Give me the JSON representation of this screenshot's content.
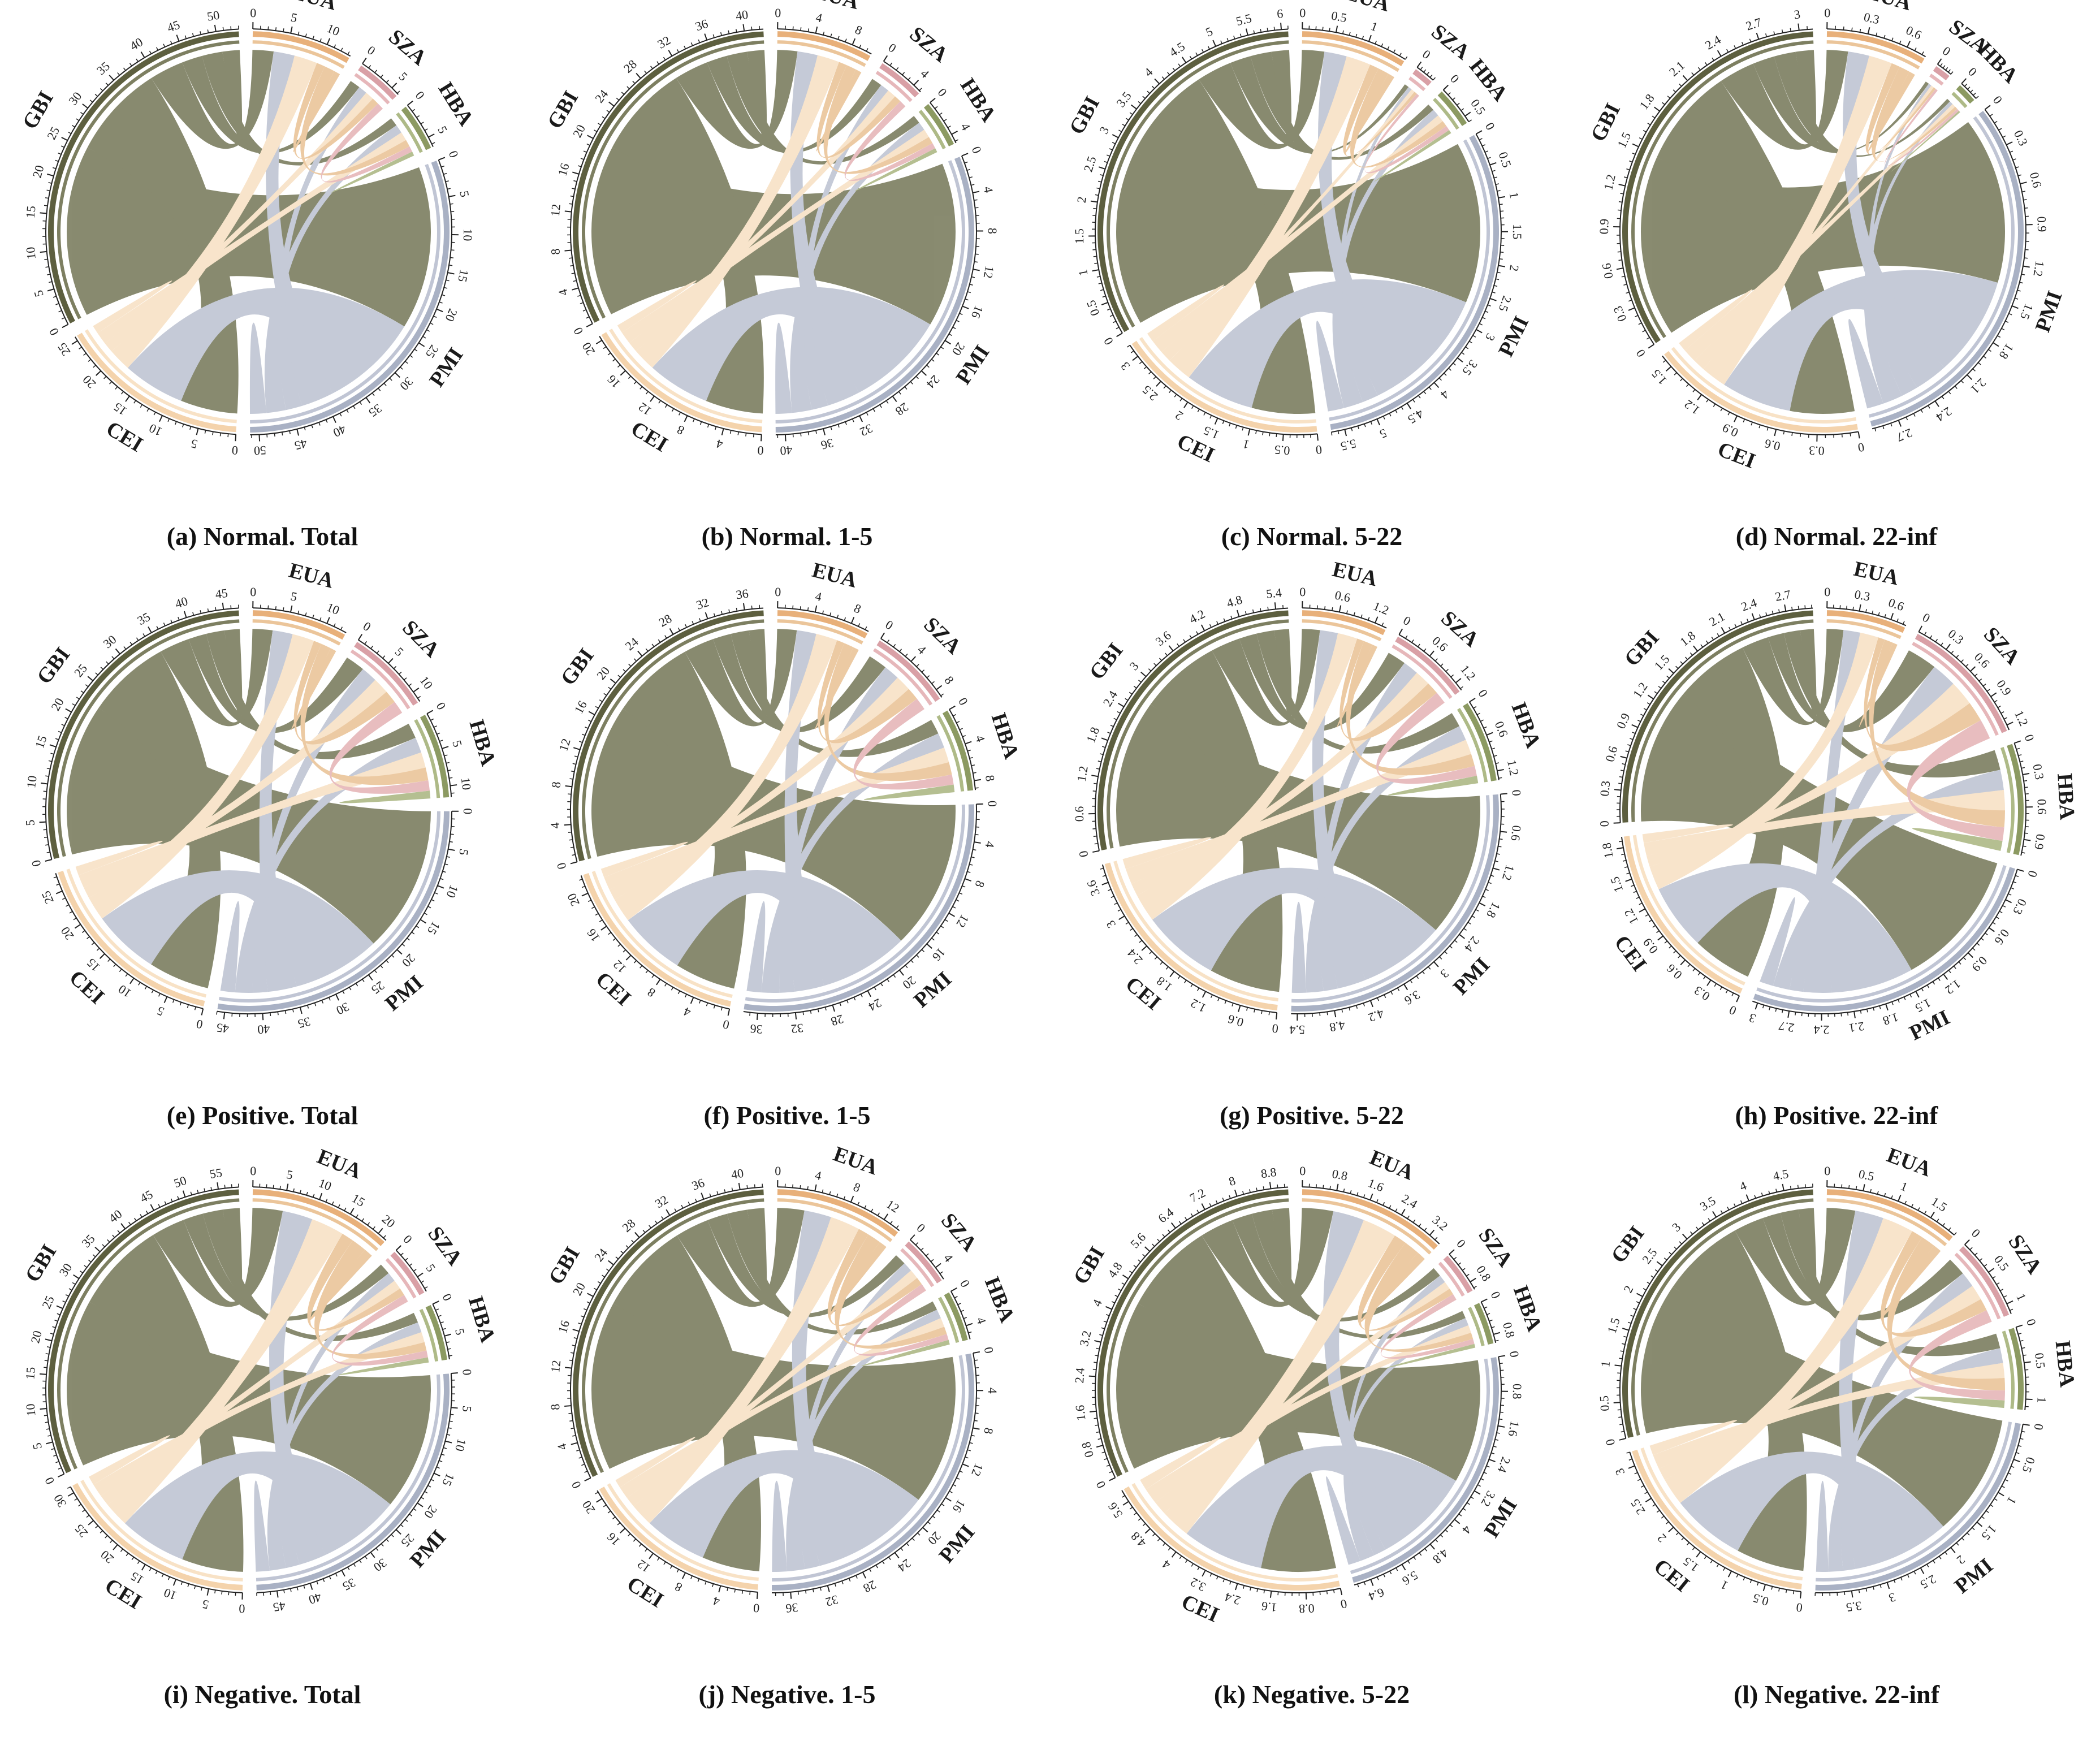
{
  "chart_data": [
    {
      "type": "chord",
      "caption": "(a) Normal. Total",
      "nodes": [
        {
          "name": "EUA",
          "total": 13.4,
          "ticks": [
            0,
            5,
            10
          ]
        },
        {
          "name": "SZA",
          "total": 6.2,
          "ticks": [
            0,
            5
          ]
        },
        {
          "name": "HBA",
          "total": 6.4,
          "ticks": [
            0,
            5
          ]
        },
        {
          "name": "PMI",
          "total": 51.2,
          "ticks": [
            0,
            5,
            10,
            15,
            20,
            25,
            30,
            35,
            40,
            45,
            50
          ]
        },
        {
          "name": "CEI",
          "total": 25.6,
          "ticks": [
            0,
            5,
            10,
            15,
            20,
            25
          ]
        },
        {
          "name": "GBI",
          "total": 53.0,
          "ticks": [
            0,
            5,
            10,
            15,
            20,
            25,
            30,
            35,
            40,
            45,
            50
          ]
        }
      ]
    },
    {
      "type": "chord",
      "caption": "(b) Normal. 1-5",
      "nodes": [
        {
          "name": "EUA",
          "total": 10.2,
          "ticks": [
            0,
            4,
            8
          ]
        },
        {
          "name": "SZA",
          "total": 5.0,
          "ticks": [
            0,
            4
          ]
        },
        {
          "name": "HBA",
          "total": 5.0,
          "ticks": [
            0,
            4
          ]
        },
        {
          "name": "PMI",
          "total": 41.0,
          "ticks": [
            0,
            4,
            8,
            12,
            16,
            20,
            24,
            28,
            32,
            36,
            40
          ]
        },
        {
          "name": "CEI",
          "total": 20.5,
          "ticks": [
            0,
            4,
            8,
            12,
            16,
            20
          ]
        },
        {
          "name": "GBI",
          "total": 42.0,
          "ticks": [
            0,
            4,
            8,
            12,
            16,
            20,
            24,
            28,
            32,
            36,
            40
          ]
        }
      ]
    },
    {
      "type": "chord",
      "caption": "(c) Normal. 5-22",
      "nodes": [
        {
          "name": "EUA",
          "total": 1.6,
          "ticks": [
            0,
            0.5,
            1
          ]
        },
        {
          "name": "SZA",
          "total": 0.3,
          "ticks": [
            0
          ]
        },
        {
          "name": "HBA",
          "total": 0.6,
          "ticks": [
            0,
            0.5
          ]
        },
        {
          "name": "PMI",
          "total": 5.7,
          "ticks": [
            0,
            0.5,
            1,
            1.5,
            2,
            2.5,
            3,
            3.5,
            4,
            4.5,
            5,
            5.5
          ]
        },
        {
          "name": "CEI",
          "total": 3.2,
          "ticks": [
            0,
            0.5,
            1,
            1.5,
            2,
            2.5,
            3
          ]
        },
        {
          "name": "GBI",
          "total": 6.1,
          "ticks": [
            0,
            0.5,
            1,
            1.5,
            2,
            2.5,
            3,
            3.5,
            4,
            4.5,
            5,
            5.5,
            6
          ]
        }
      ]
    },
    {
      "type": "chord",
      "caption": "(d) Normal. 22-inf",
      "nodes": [
        {
          "name": "EUA",
          "total": 0.75,
          "ticks": [
            0,
            0.3,
            0.6
          ]
        },
        {
          "name": "SZA",
          "total": 0.12,
          "ticks": [
            0
          ]
        },
        {
          "name": "HBA",
          "total": 0.15,
          "ticks": [
            0
          ]
        },
        {
          "name": "PMI",
          "total": 2.9,
          "ticks": [
            0,
            0.3,
            0.6,
            0.9,
            1.2,
            1.5,
            1.8,
            2.1,
            2.4,
            2.7
          ]
        },
        {
          "name": "CEI",
          "total": 1.6,
          "ticks": [
            0,
            0.3,
            0.6,
            0.9,
            1.2,
            1.5
          ]
        },
        {
          "name": "GBI",
          "total": 3.1,
          "ticks": [
            0,
            0.3,
            0.6,
            0.9,
            1.2,
            1.5,
            1.8,
            2.1,
            2.4,
            2.7,
            3
          ]
        }
      ]
    },
    {
      "type": "chord",
      "caption": "(e) Positive. Total",
      "nodes": [
        {
          "name": "EUA",
          "total": 12.8,
          "ticks": [
            0,
            5,
            10
          ]
        },
        {
          "name": "SZA",
          "total": 11.5,
          "ticks": [
            0,
            5,
            10
          ]
        },
        {
          "name": "HBA",
          "total": 11.5,
          "ticks": [
            0,
            5,
            10
          ]
        },
        {
          "name": "PMI",
          "total": 46.0,
          "ticks": [
            0,
            5,
            10,
            15,
            20,
            25,
            30,
            35,
            40,
            45
          ]
        },
        {
          "name": "CEI",
          "total": 27.5,
          "ticks": [
            0,
            5,
            10,
            15,
            20,
            25
          ]
        },
        {
          "name": "GBI",
          "total": 47.0,
          "ticks": [
            0,
            5,
            10,
            15,
            20,
            25,
            30,
            35,
            40,
            45
          ]
        }
      ]
    },
    {
      "type": "chord",
      "caption": "(f) Positive. 1-5",
      "nodes": [
        {
          "name": "EUA",
          "total": 10.0,
          "ticks": [
            0,
            4,
            8
          ]
        },
        {
          "name": "SZA",
          "total": 9.0,
          "ticks": [
            0,
            4,
            8
          ]
        },
        {
          "name": "HBA",
          "total": 9.0,
          "ticks": [
            0,
            4,
            8
          ]
        },
        {
          "name": "PMI",
          "total": 37.5,
          "ticks": [
            0,
            4,
            8,
            12,
            16,
            20,
            24,
            28,
            32,
            36
          ]
        },
        {
          "name": "CEI",
          "total": 22.0,
          "ticks": [
            0,
            4,
            8,
            12,
            16,
            20
          ]
        },
        {
          "name": "GBI",
          "total": 38.0,
          "ticks": [
            0,
            4,
            8,
            12,
            16,
            20,
            24,
            28,
            32,
            36
          ]
        }
      ]
    },
    {
      "type": "chord",
      "caption": "(g) Positive. 5-22",
      "nodes": [
        {
          "name": "EUA",
          "total": 1.4,
          "ticks": [
            0,
            0.6,
            1.2
          ]
        },
        {
          "name": "SZA",
          "total": 1.35,
          "ticks": [
            0,
            0.6,
            1.2
          ]
        },
        {
          "name": "HBA",
          "total": 1.35,
          "ticks": [
            0,
            0.6,
            1.2
          ]
        },
        {
          "name": "PMI",
          "total": 5.5,
          "ticks": [
            0,
            0.6,
            1.2,
            1.8,
            2.4,
            3,
            3.6,
            4.2,
            4.8,
            5.4
          ]
        },
        {
          "name": "CEI",
          "total": 3.9,
          "ticks": [
            0,
            0.6,
            1.2,
            1.8,
            2.4,
            3,
            3.6
          ]
        },
        {
          "name": "GBI",
          "total": 5.6,
          "ticks": [
            0,
            0.6,
            1.2,
            1.8,
            2.4,
            3,
            3.6,
            4.2,
            4.8,
            5.4
          ]
        }
      ]
    },
    {
      "type": "chord",
      "caption": "(h) Positive. 22-inf",
      "nodes": [
        {
          "name": "EUA",
          "total": 0.75,
          "ticks": [
            0,
            0.3,
            0.6
          ]
        },
        {
          "name": "SZA",
          "total": 1.25,
          "ticks": [
            0,
            0.3,
            0.6,
            0.9,
            1.2
          ]
        },
        {
          "name": "HBA",
          "total": 1.05,
          "ticks": [
            0,
            0.3,
            0.6,
            0.9
          ]
        },
        {
          "name": "PMI",
          "total": 3.05,
          "ticks": [
            0,
            0.3,
            0.6,
            0.9,
            1.2,
            1.5,
            1.8,
            2.1,
            2.4,
            2.7,
            3
          ]
        },
        {
          "name": "CEI",
          "total": 1.9,
          "ticks": [
            0,
            0.3,
            0.6,
            0.9,
            1.2,
            1.5,
            1.8
          ]
        },
        {
          "name": "GBI",
          "total": 2.95,
          "ticks": [
            0,
            0.3,
            0.6,
            0.9,
            1.2,
            1.5,
            1.8,
            2.1,
            2.4,
            2.7
          ]
        }
      ]
    },
    {
      "type": "chord",
      "caption": "(i) Negative. Total",
      "nodes": [
        {
          "name": "EUA",
          "total": 21.5,
          "ticks": [
            0,
            5,
            10,
            15,
            20
          ]
        },
        {
          "name": "SZA",
          "total": 7.5,
          "ticks": [
            0,
            5
          ]
        },
        {
          "name": "HBA",
          "total": 8.5,
          "ticks": [
            0,
            5
          ]
        },
        {
          "name": "PMI",
          "total": 48.0,
          "ticks": [
            0,
            5,
            10,
            15,
            20,
            25,
            30,
            35,
            40,
            45
          ]
        },
        {
          "name": "CEI",
          "total": 31.0,
          "ticks": [
            0,
            5,
            10,
            15,
            20,
            25,
            30
          ]
        },
        {
          "name": "GBI",
          "total": 58.0,
          "ticks": [
            0,
            5,
            10,
            15,
            20,
            25,
            30,
            35,
            40,
            45,
            50,
            55
          ]
        }
      ]
    },
    {
      "type": "chord",
      "caption": "(j) Negative. 1-5",
      "nodes": [
        {
          "name": "EUA",
          "total": 14.0,
          "ticks": [
            0,
            4,
            8,
            12
          ]
        },
        {
          "name": "SZA",
          "total": 5.5,
          "ticks": [
            0,
            4
          ]
        },
        {
          "name": "HBA",
          "total": 5.5,
          "ticks": [
            0,
            4
          ]
        },
        {
          "name": "PMI",
          "total": 38.0,
          "ticks": [
            0,
            4,
            8,
            12,
            16,
            20,
            24,
            28,
            32,
            36
          ]
        },
        {
          "name": "CEI",
          "total": 21.0,
          "ticks": [
            0,
            4,
            8,
            12,
            16,
            20
          ]
        },
        {
          "name": "GBI",
          "total": 42.5,
          "ticks": [
            0,
            4,
            8,
            12,
            16,
            20,
            24,
            28,
            32,
            36,
            40
          ]
        }
      ]
    },
    {
      "type": "chord",
      "caption": "(k) Negative. 5-22",
      "nodes": [
        {
          "name": "EUA",
          "total": 3.5,
          "ticks": [
            0,
            0.8,
            1.6,
            2.4,
            3.2
          ]
        },
        {
          "name": "SZA",
          "total": 1.0,
          "ticks": [
            0,
            0.8
          ]
        },
        {
          "name": "HBA",
          "total": 1.0,
          "ticks": [
            0,
            0.8
          ]
        },
        {
          "name": "PMI",
          "total": 6.8,
          "ticks": [
            0,
            0.8,
            1.6,
            2.4,
            3.2,
            4,
            4.8,
            5.6,
            6.4
          ]
        },
        {
          "name": "CEI",
          "total": 5.9,
          "ticks": [
            0,
            0.8,
            1.6,
            2.4,
            3.2,
            4,
            4.8,
            5.6
          ]
        },
        {
          "name": "GBI",
          "total": 9.2,
          "ticks": [
            0,
            0.8,
            1.6,
            2.4,
            3.2,
            4,
            4.8,
            5.6,
            6.4,
            7.2,
            8,
            8.8
          ]
        }
      ]
    },
    {
      "type": "chord",
      "caption": "(l) Negative. 22-inf",
      "nodes": [
        {
          "name": "EUA",
          "total": 1.9,
          "ticks": [
            0,
            0.5,
            1,
            1.5
          ]
        },
        {
          "name": "SZA",
          "total": 1.15,
          "ticks": [
            0,
            0.5,
            1
          ]
        },
        {
          "name": "HBA",
          "total": 1.15,
          "ticks": [
            0,
            0.5,
            1
          ]
        },
        {
          "name": "PMI",
          "total": 4.0,
          "ticks": [
            0,
            0.5,
            1,
            1.5,
            2,
            2.5,
            3,
            3.5
          ]
        },
        {
          "name": "CEI",
          "total": 3.2,
          "ticks": [
            0,
            0.5,
            1,
            1.5,
            2,
            2.5,
            3
          ]
        },
        {
          "name": "GBI",
          "total": 4.9,
          "ticks": [
            0,
            0.5,
            1,
            1.5,
            2,
            2.5,
            3,
            3.5,
            4,
            4.5
          ]
        }
      ]
    }
  ],
  "colors": {
    "EUA": "#e8b07a",
    "SZA": "#d9a0a6",
    "HBA": "#8c9a62",
    "PMI": "#a9b1c4",
    "CEI": "#f4d3ac",
    "GBI": "#5d5f3f"
  },
  "chord_colors": {
    "EUA": "#e9bf8f",
    "SZA": "#e3afb2",
    "HBA": "#a5b27a",
    "PMI": "#b9bfcf",
    "CEI": "#f7dfc0",
    "GBI": "#6f7150"
  }
}
